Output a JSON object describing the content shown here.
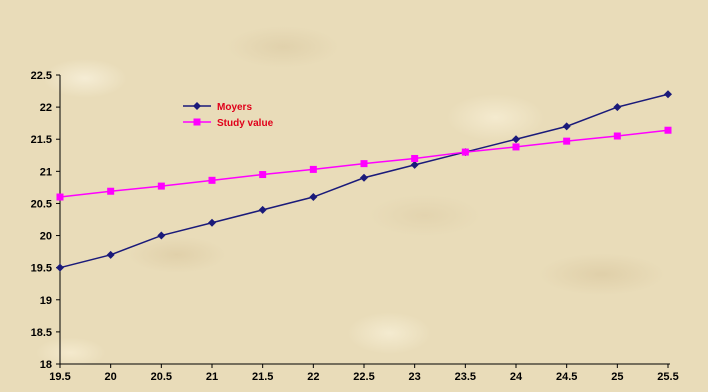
{
  "chart_data": {
    "type": "line",
    "x": [
      19.5,
      20,
      20.5,
      21,
      21.5,
      22,
      22.5,
      23,
      23.5,
      24,
      24.5,
      25,
      25.5
    ],
    "x_tick_labels": [
      "19.5",
      "20",
      "20.5",
      "21",
      "21.5",
      "22",
      "22.5",
      "23",
      "23.5",
      "24",
      "24.5",
      "25",
      "25.5"
    ],
    "y_tick_labels": [
      "18",
      "18.5",
      "19",
      "19.5",
      "20",
      "20.5",
      "21",
      "21.5",
      "22",
      "22.5"
    ],
    "ylim": [
      18,
      22.5
    ],
    "xlim": [
      19.5,
      25.5
    ],
    "grid": false,
    "legend_placement": "upper-left inside plot",
    "series": [
      {
        "name": "Moyers",
        "color": "#1a1a7a",
        "marker": "diamond",
        "values": [
          19.5,
          19.7,
          20.0,
          20.2,
          20.4,
          20.6,
          20.9,
          21.1,
          21.3,
          21.5,
          21.7,
          22.0,
          22.2
        ]
      },
      {
        "name": "Study value",
        "color": "#ff00ff",
        "marker": "square",
        "values": [
          20.6,
          20.69,
          20.77,
          20.86,
          20.95,
          21.03,
          21.12,
          21.2,
          21.3,
          21.38,
          21.47,
          21.55,
          21.64
        ]
      }
    ],
    "legend_text_color": "#e0001a"
  }
}
